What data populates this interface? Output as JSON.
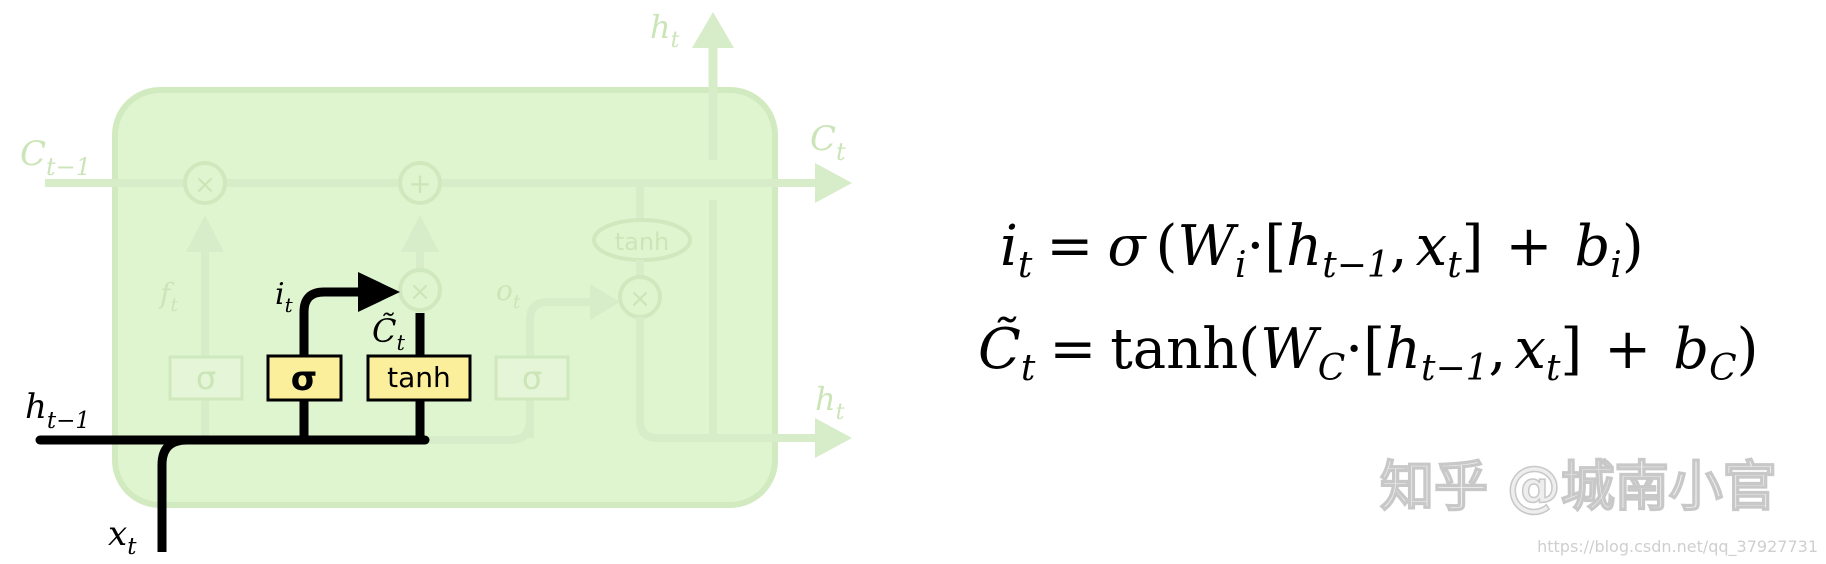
{
  "diagram": {
    "labels": {
      "h_top": {
        "base": "h",
        "sub": "t"
      },
      "c_prev": {
        "base": "C",
        "sub": "t−1"
      },
      "c_next": {
        "base": "C",
        "sub": "t"
      },
      "h_right": {
        "base": "h",
        "sub": "t"
      },
      "h_prev": {
        "base": "h",
        "sub": "t−1"
      },
      "x_in": {
        "base": "x",
        "sub": "t"
      },
      "f_gate": {
        "base": "f",
        "sub": "t"
      },
      "i_gate": {
        "base": "i",
        "sub": "t"
      },
      "o_gate": {
        "base": "o",
        "sub": "t"
      },
      "c_tilde": {
        "base": "C̃",
        "sub": "t"
      }
    },
    "ops": {
      "multiply": "×",
      "add": "+"
    },
    "layers": {
      "sigma": "σ",
      "tanh": "tanh",
      "tanh_pointwise": "tanh"
    },
    "colors": {
      "cell_fill": "#dff5cf",
      "faded_line": "#d7ecc8",
      "faded_text": "#cbe5b8",
      "highlight_line": "#000000",
      "layer_fill": "#fbef9c"
    }
  },
  "equations": {
    "eq1": {
      "lhs_base": "i",
      "lhs_sub": "t",
      "eq": "=",
      "fn": "σ",
      "open": "(",
      "w_base": "W",
      "w_sub": "i",
      "dot": "·",
      "br_open": "[",
      "h_base": "h",
      "h_sub": "t−1",
      "comma": ",",
      "x_base": "x",
      "x_sub": "t",
      "br_close": "]",
      "plus": "+",
      "b_base": "b",
      "b_sub": "i",
      "close": ")"
    },
    "eq2": {
      "lhs_base": "C̃",
      "lhs_sub": "t",
      "eq": "=",
      "fn": "tanh",
      "open": "(",
      "w_base": "W",
      "w_sub": "C",
      "dot": "·",
      "br_open": "[",
      "h_base": "h",
      "h_sub": "t−1",
      "comma": ",",
      "x_base": "x",
      "x_sub": "t",
      "br_close": "]",
      "plus": "+",
      "b_base": "b",
      "b_sub": "C",
      "close": ")"
    }
  },
  "watermark": {
    "text": "知乎 @城南小官",
    "url": "https://blog.csdn.net/qq_37927731"
  }
}
